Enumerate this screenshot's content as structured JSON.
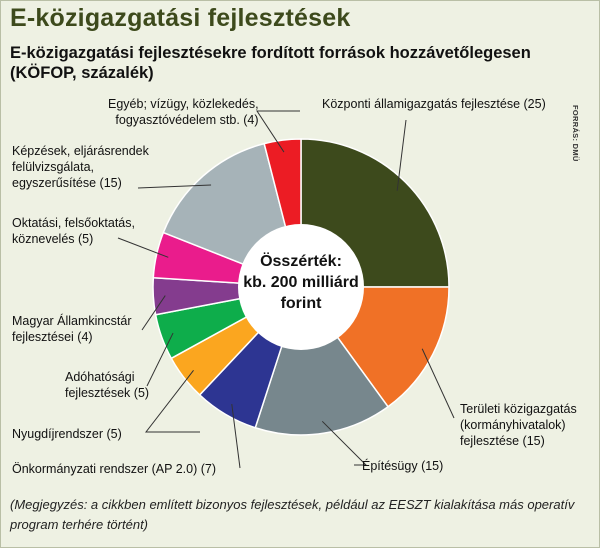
{
  "header": {
    "title": "E-közigazgatási fejlesztések",
    "subtitle": "E-közigazgatási fejlesztésekre fordított források hozzávetőlegesen (KÖFOP, százalék)",
    "source": "FORRÁS: DMÜ"
  },
  "center": {
    "line1": "Összérték:",
    "line2": "kb. 200 milliárd",
    "line3": "forint"
  },
  "note": "(Megjegyzés: a cikkben említett bizonyos fejlesztések, például az EESZT kialakítása más operatív program terhére történt)",
  "labels": {
    "central": [
      "Központi államigazgatás fejlesztése (25)"
    ],
    "territorial": [
      "Területi közigazgatás",
      "(kormányhivatalok)",
      "fejlesztése (15)"
    ],
    "construction": [
      "Építésügy (15)"
    ],
    "municipal": [
      "Önkormányzati rendszer (AP 2.0) (7)"
    ],
    "pension": [
      "Nyugdíjrendszer (5)"
    ],
    "tax": [
      "Adóhatósági",
      "fejlesztések (5)"
    ],
    "treasury": [
      "Magyar Államkincstár",
      "fejlesztései (4)"
    ],
    "education": [
      "Oktatási, felsőoktatás,",
      "köznevelés (5)"
    ],
    "training": [
      "Képzések, eljárásrendek",
      "felülvizsgálata,",
      "egyszerűsítése (15)"
    ],
    "other": [
      "Egyéb; vízügy, közlekedés,",
      "fogyasztóvédelem stb. (4)"
    ]
  },
  "chart_data": {
    "type": "pie",
    "donut": true,
    "title": "E-közigazgatási fejlesztésekre fordított források hozzávetőlegesen (KÖFOP, százalék)",
    "unit": "százalék",
    "total_label": "Összérték: kb. 200 milliárd forint",
    "slices": [
      {
        "label": "Központi államigazgatás fejlesztése",
        "value": 25,
        "color": "#3d4a1c"
      },
      {
        "label": "Területi közigazgatás (kormányhivatalok) fejlesztése",
        "value": 15,
        "color": "#f07126"
      },
      {
        "label": "Építésügy",
        "value": 15,
        "color": "#77878d"
      },
      {
        "label": "Önkormányzati rendszer (AP 2.0)",
        "value": 7,
        "color": "#2d3592"
      },
      {
        "label": "Nyugdíjrendszer",
        "value": 5,
        "color": "#fba61f"
      },
      {
        "label": "Adóhatósági fejlesztések",
        "value": 5,
        "color": "#0ead4b"
      },
      {
        "label": "Magyar Államkincstár fejlesztései",
        "value": 4,
        "color": "#843c8e"
      },
      {
        "label": "Oktatási, felsőoktatás, köznevelés",
        "value": 5,
        "color": "#ea1c8c"
      },
      {
        "label": "Képzések, eljárásrendek felülvizsgálata, egyszerűsítése",
        "value": 15,
        "color": "#a6b3b8"
      },
      {
        "label": "Egyéb; vízügy, közlekedés, fogyasztóvédelem stb.",
        "value": 4,
        "color": "#ec1c24"
      }
    ]
  }
}
